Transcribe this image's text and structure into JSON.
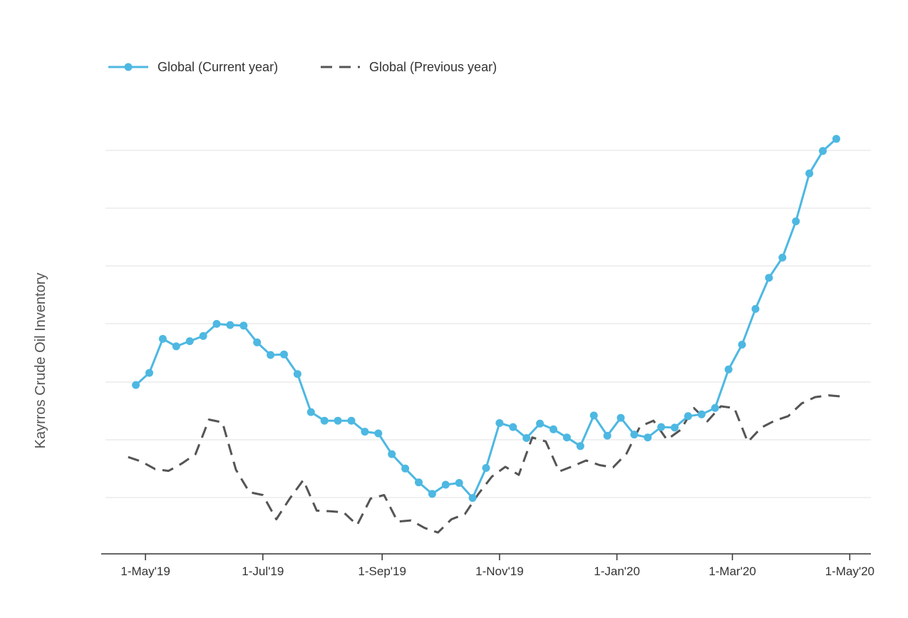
{
  "chart_data": {
    "type": "line",
    "title": "",
    "xlabel": "",
    "ylabel": "Kayrros Crude Oil Inventory",
    "grid": true,
    "y_ticks_labeled": false,
    "legend_position": "top-left",
    "x_ticks": [
      "1-May'19",
      "1-Jul'19",
      "1-Sep'19",
      "1-Nov'19",
      "1-Jan'20",
      "1-Mar'20",
      "1-May'20"
    ],
    "x_tick_dates": [
      "2019-05-01",
      "2019-07-01",
      "2019-09-01",
      "2019-11-01",
      "2020-01-01",
      "2020-03-01",
      "2020-05-01"
    ],
    "ylim": [
      0,
      7
    ],
    "xlim": [
      "2019-04-08",
      "2020-05-12"
    ],
    "series": [
      {
        "name": "Global (Current year)",
        "color": "#4db8e2",
        "style": "solid-markers",
        "x": [
          "2019-04-26",
          "2019-05-03",
          "2019-05-10",
          "2019-05-17",
          "2019-05-24",
          "2019-05-31",
          "2019-06-07",
          "2019-06-14",
          "2019-06-21",
          "2019-06-28",
          "2019-07-05",
          "2019-07-12",
          "2019-07-19",
          "2019-07-26",
          "2019-08-02",
          "2019-08-09",
          "2019-08-16",
          "2019-08-23",
          "2019-08-30",
          "2019-09-06",
          "2019-09-13",
          "2019-09-20",
          "2019-09-27",
          "2019-10-04",
          "2019-10-11",
          "2019-10-18",
          "2019-10-25",
          "2019-11-01",
          "2019-11-08",
          "2019-11-15",
          "2019-11-22",
          "2019-11-29",
          "2019-12-06",
          "2019-12-13",
          "2019-12-20",
          "2019-12-27",
          "2020-01-03",
          "2020-01-10",
          "2020-01-17",
          "2020-01-24",
          "2020-01-31",
          "2020-02-07",
          "2020-02-14",
          "2020-02-21",
          "2020-02-28",
          "2020-03-06",
          "2020-03-13",
          "2020-03-20",
          "2020-03-27",
          "2020-04-03",
          "2020-04-10",
          "2020-04-17",
          "2020-04-24"
        ],
        "values": [
          2.93,
          3.14,
          3.73,
          3.6,
          3.69,
          3.78,
          3.99,
          3.97,
          3.96,
          3.67,
          3.45,
          3.46,
          3.12,
          2.46,
          2.31,
          2.31,
          2.31,
          2.12,
          2.09,
          1.73,
          1.48,
          1.24,
          1.04,
          1.2,
          1.23,
          0.97,
          1.49,
          2.27,
          2.2,
          2.01,
          2.26,
          2.16,
          2.02,
          1.87,
          2.4,
          2.05,
          2.36,
          2.07,
          2.02,
          2.2,
          2.19,
          2.39,
          2.42,
          2.53,
          3.2,
          3.63,
          4.25,
          4.79,
          5.14,
          5.77,
          6.6,
          6.99,
          7.2
        ]
      },
      {
        "name": "Global (Previous year)",
        "color": "#555555",
        "style": "dashed",
        "x": [
          "2019-04-22",
          "2019-04-29",
          "2019-05-06",
          "2019-05-13",
          "2019-05-20",
          "2019-05-27",
          "2019-06-03",
          "2019-06-10",
          "2019-06-17",
          "2019-06-24",
          "2019-07-01",
          "2019-07-08",
          "2019-07-15",
          "2019-07-22",
          "2019-07-29",
          "2019-08-05",
          "2019-08-12",
          "2019-08-19",
          "2019-08-26",
          "2019-09-02",
          "2019-09-09",
          "2019-09-16",
          "2019-09-23",
          "2019-09-30",
          "2019-10-07",
          "2019-10-14",
          "2019-10-21",
          "2019-10-28",
          "2019-11-04",
          "2019-11-11",
          "2019-11-18",
          "2019-11-25",
          "2019-12-02",
          "2019-12-09",
          "2019-12-16",
          "2019-12-23",
          "2019-12-30",
          "2020-01-06",
          "2020-01-13",
          "2020-01-20",
          "2020-01-27",
          "2020-02-03",
          "2020-02-10",
          "2020-02-17",
          "2020-02-24",
          "2020-03-02",
          "2020-03-09",
          "2020-03-16",
          "2020-03-23",
          "2020-03-30",
          "2020-04-06",
          "2020-04-13",
          "2020-04-20",
          "2020-04-27"
        ],
        "values": [
          1.68,
          1.6,
          1.47,
          1.44,
          1.57,
          1.73,
          2.33,
          2.28,
          1.46,
          1.07,
          1.02,
          0.6,
          0.96,
          1.28,
          0.75,
          0.74,
          0.72,
          0.5,
          0.96,
          1.02,
          0.56,
          0.58,
          0.45,
          0.37,
          0.6,
          0.69,
          1.04,
          1.34,
          1.51,
          1.37,
          2.02,
          1.95,
          1.43,
          1.52,
          1.62,
          1.54,
          1.5,
          1.74,
          2.21,
          2.31,
          1.98,
          2.15,
          2.53,
          2.3,
          2.56,
          2.53,
          1.94,
          2.19,
          2.31,
          2.39,
          2.61,
          2.72,
          2.75,
          2.73
        ]
      }
    ]
  }
}
